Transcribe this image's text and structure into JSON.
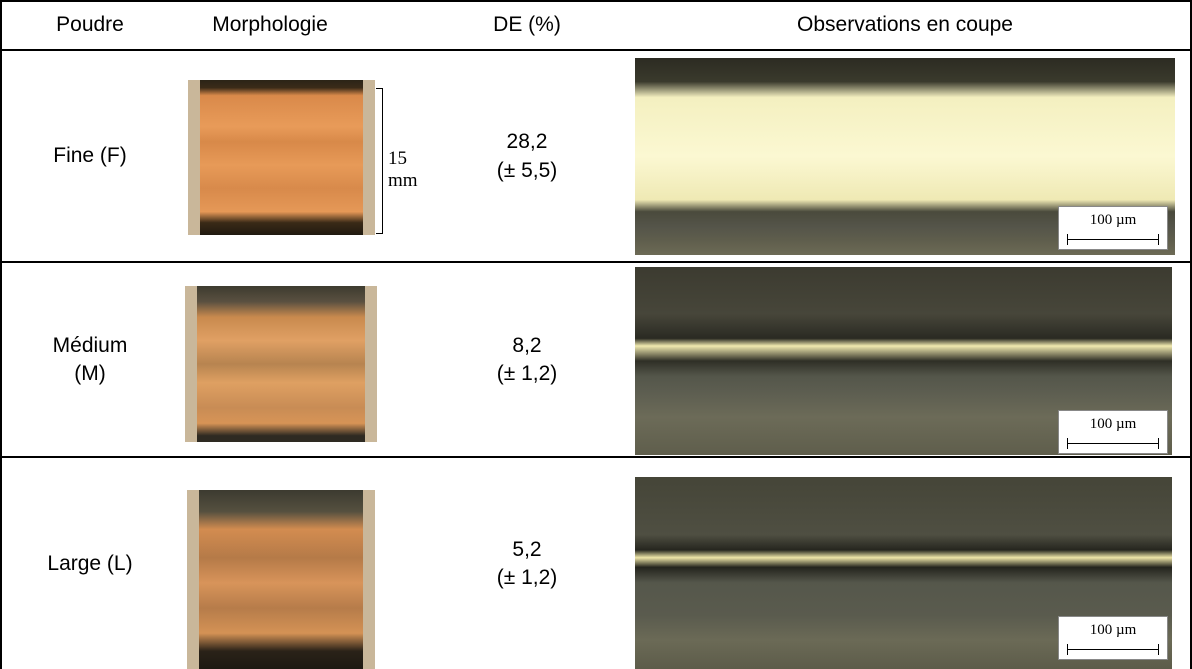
{
  "table": {
    "header": [
      "Poudre",
      "Morphologie",
      "DE (%)",
      "Observations en coupe"
    ],
    "rows": [
      {
        "label": "Fine (F)",
        "de": "28,2",
        "de_error": "(± 5,5)",
        "morphology_scale": "15 mm",
        "section_scale": "100 µm"
      },
      {
        "label": "Médium (M)",
        "de": "8,2",
        "de_error": "(± 1,2)",
        "section_scale": "100 µm"
      },
      {
        "label": "Large (L)",
        "de": "5,2",
        "de_error": "(± 1,2)",
        "section_scale": "100 µm"
      }
    ]
  }
}
